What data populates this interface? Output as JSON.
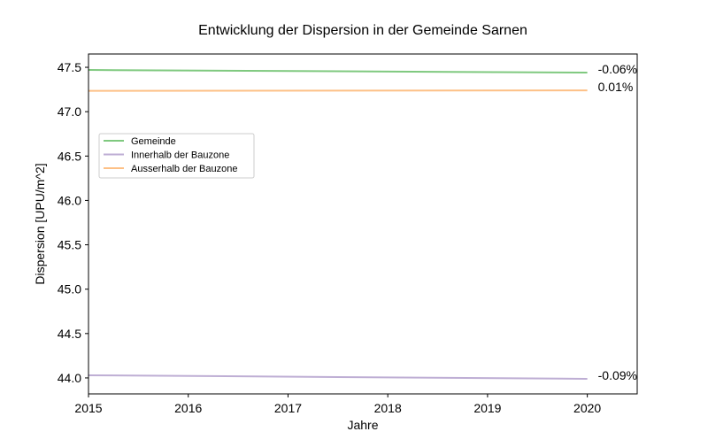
{
  "chart_data": {
    "type": "line",
    "title": "Entwicklung der Dispersion in der Gemeinde Sarnen",
    "xlabel": "Jahre",
    "ylabel": "Dispersion [UPU/m^2]",
    "xlim": [
      2015,
      2020.5
    ],
    "ylim": [
      43.82,
      47.65
    ],
    "x_ticks": [
      2015,
      2016,
      2017,
      2018,
      2019,
      2020
    ],
    "y_ticks": [
      44.0,
      44.5,
      45.0,
      45.5,
      46.0,
      46.5,
      47.0,
      47.5
    ],
    "y_tick_labels": [
      "44.0",
      "44.5",
      "45.0",
      "45.5",
      "46.0",
      "46.5",
      "47.0",
      "47.5"
    ],
    "grid": false,
    "legend_position": "upper-left",
    "x": [
      2015,
      2020
    ],
    "series": [
      {
        "name": "Gemeinde",
        "color": "#7fc97f",
        "values": [
          47.47,
          47.44
        ],
        "annotation": "-0.06%"
      },
      {
        "name": "Innerhalb der Bauzone",
        "color": "#beaed4",
        "values": [
          44.03,
          43.99
        ],
        "annotation": "-0.09%"
      },
      {
        "name": "Ausserhalb der Bauzone",
        "color": "#fdc086",
        "values": [
          47.235,
          47.24
        ],
        "annotation": "0.01%"
      }
    ]
  }
}
